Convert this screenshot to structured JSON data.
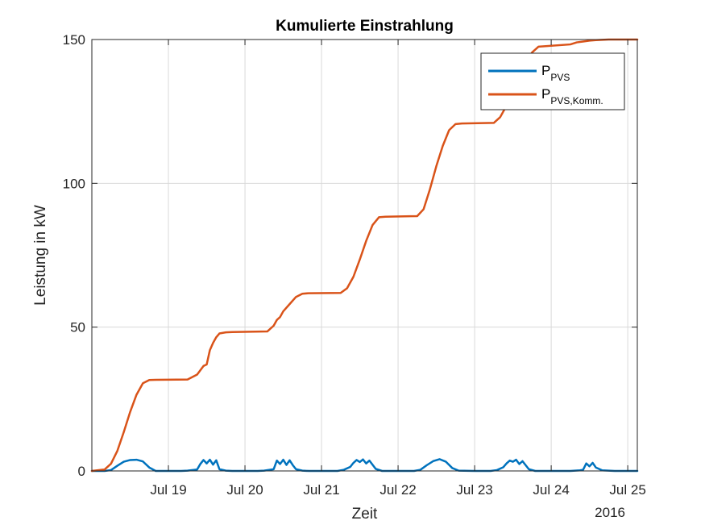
{
  "chart_data": {
    "type": "line",
    "title": "Kumulierte Einstrahlung",
    "xlabel": "Zeit",
    "ylabel": "Leistung in kW",
    "year_label": "2016",
    "xlim": [
      "2016-07-18 00:00",
      "2016-07-25 03:00"
    ],
    "ylim": [
      0,
      150
    ],
    "x_ticks": [
      {
        "at": "2016-07-19",
        "label": "Jul 19"
      },
      {
        "at": "2016-07-20",
        "label": "Jul 20"
      },
      {
        "at": "2016-07-21",
        "label": "Jul 21"
      },
      {
        "at": "2016-07-22",
        "label": "Jul 22"
      },
      {
        "at": "2016-07-23",
        "label": "Jul 23"
      },
      {
        "at": "2016-07-24",
        "label": "Jul 24"
      },
      {
        "at": "2016-07-25",
        "label": "Jul 25"
      }
    ],
    "y_ticks": [
      0,
      50,
      100,
      150
    ],
    "grid": true,
    "legend_position": "top-right",
    "series": [
      {
        "name": "P",
        "name_sub": "PVS",
        "color": "#0072BD",
        "x": [
          "2016-07-18 00:00",
          "2016-07-18 04:00",
          "2016-07-18 06:00",
          "2016-07-18 08:00",
          "2016-07-18 10:00",
          "2016-07-18 12:00",
          "2016-07-18 14:00",
          "2016-07-18 16:00",
          "2016-07-18 18:00",
          "2016-07-18 20:00",
          "2016-07-19 00:00",
          "2016-07-19 04:00",
          "2016-07-19 06:00",
          "2016-07-19 09:00",
          "2016-07-19 10:00",
          "2016-07-19 11:00",
          "2016-07-19 12:00",
          "2016-07-19 13:00",
          "2016-07-19 14:00",
          "2016-07-19 15:00",
          "2016-07-19 16:00",
          "2016-07-19 18:00",
          "2016-07-19 20:00",
          "2016-07-20 00:00",
          "2016-07-20 04:00",
          "2016-07-20 06:00",
          "2016-07-20 09:00",
          "2016-07-20 10:00",
          "2016-07-20 11:00",
          "2016-07-20 12:00",
          "2016-07-20 13:00",
          "2016-07-20 14:00",
          "2016-07-20 15:00",
          "2016-07-20 16:00",
          "2016-07-20 18:00",
          "2016-07-20 20:00",
          "2016-07-21 00:00",
          "2016-07-21 05:00",
          "2016-07-21 07:00",
          "2016-07-21 09:00",
          "2016-07-21 10:00",
          "2016-07-21 11:00",
          "2016-07-21 12:00",
          "2016-07-21 13:00",
          "2016-07-21 14:00",
          "2016-07-21 15:00",
          "2016-07-21 17:00",
          "2016-07-21 19:00",
          "2016-07-22 00:00",
          "2016-07-22 05:00",
          "2016-07-22 07:00",
          "2016-07-22 09:00",
          "2016-07-22 11:00",
          "2016-07-22 13:00",
          "2016-07-22 15:00",
          "2016-07-22 17:00",
          "2016-07-22 19:00",
          "2016-07-23 00:00",
          "2016-07-23 05:00",
          "2016-07-23 07:00",
          "2016-07-23 09:00",
          "2016-07-23 10:00",
          "2016-07-23 11:00",
          "2016-07-23 12:00",
          "2016-07-23 13:00",
          "2016-07-23 14:00",
          "2016-07-23 15:00",
          "2016-07-23 17:00",
          "2016-07-23 19:00",
          "2016-07-24 00:00",
          "2016-07-24 06:00",
          "2016-07-24 09:00",
          "2016-07-24 10:00",
          "2016-07-24 11:00",
          "2016-07-24 12:00",
          "2016-07-24 13:00",
          "2016-07-24 14:00",
          "2016-07-24 16:00",
          "2016-07-24 20:00",
          "2016-07-25 03:00"
        ],
        "y": [
          0,
          0,
          0.3,
          1.8,
          3.2,
          3.8,
          3.9,
          3.3,
          1.2,
          0,
          0,
          0,
          0.1,
          0.5,
          2.4,
          3.8,
          2.6,
          3.9,
          2.2,
          3.7,
          0.6,
          0.1,
          0,
          0,
          0,
          0.1,
          0.6,
          3.6,
          2.4,
          3.9,
          2.1,
          3.7,
          2.0,
          0.6,
          0.1,
          0,
          0,
          0,
          0.4,
          1.4,
          2.8,
          3.8,
          3.1,
          4.0,
          2.6,
          3.6,
          0.7,
          0,
          0,
          0,
          0.4,
          2.0,
          3.4,
          4.1,
          3.2,
          1.0,
          0.1,
          0,
          0,
          0.3,
          1.3,
          2.6,
          3.6,
          3.2,
          3.9,
          2.4,
          3.4,
          0.6,
          0,
          0,
          0,
          0.2,
          0.4,
          2.6,
          1.6,
          2.8,
          1.2,
          0.2,
          0,
          0
        ]
      },
      {
        "name": "P",
        "name_sub": "PVS,Komm.",
        "color": "#D95319",
        "x": [
          "2016-07-18 00:00",
          "2016-07-18 04:00",
          "2016-07-18 06:00",
          "2016-07-18 08:00",
          "2016-07-18 10:00",
          "2016-07-18 12:00",
          "2016-07-18 14:00",
          "2016-07-18 16:00",
          "2016-07-18 18:00",
          "2016-07-18 20:00",
          "2016-07-19 06:00",
          "2016-07-19 09:00",
          "2016-07-19 11:00",
          "2016-07-19 12:00",
          "2016-07-19 13:00",
          "2016-07-19 14:00",
          "2016-07-19 15:00",
          "2016-07-19 16:00",
          "2016-07-19 18:00",
          "2016-07-19 20:00",
          "2016-07-20 07:00",
          "2016-07-20 09:00",
          "2016-07-20 10:00",
          "2016-07-20 11:00",
          "2016-07-20 12:00",
          "2016-07-20 14:00",
          "2016-07-20 16:00",
          "2016-07-20 18:00",
          "2016-07-20 20:00",
          "2016-07-21 06:00",
          "2016-07-21 08:00",
          "2016-07-21 10:00",
          "2016-07-21 12:00",
          "2016-07-21 14:00",
          "2016-07-21 16:00",
          "2016-07-21 18:00",
          "2016-07-21 20:00",
          "2016-07-22 06:00",
          "2016-07-22 08:00",
          "2016-07-22 10:00",
          "2016-07-22 12:00",
          "2016-07-22 14:00",
          "2016-07-22 16:00",
          "2016-07-22 18:00",
          "2016-07-22 20:00",
          "2016-07-23 06:00",
          "2016-07-23 08:00",
          "2016-07-23 10:00",
          "2016-07-23 12:00",
          "2016-07-23 14:00",
          "2016-07-23 16:00",
          "2016-07-23 18:00",
          "2016-07-23 20:00",
          "2016-07-24 06:00",
          "2016-07-24 08:00",
          "2016-07-24 10:00",
          "2016-07-24 12:00",
          "2016-07-24 14:00",
          "2016-07-24 16:00",
          "2016-07-24 18:00",
          "2016-07-24 20:00",
          "2016-07-25 03:00"
        ],
        "y": [
          0,
          0.5,
          2.5,
          7,
          13.5,
          20.5,
          26.5,
          30.5,
          31.6,
          31.7,
          31.8,
          33.5,
          36.5,
          37,
          42,
          44.5,
          46.5,
          47.8,
          48.2,
          48.3,
          48.5,
          50.5,
          52.5,
          53.5,
          55.5,
          58,
          60.5,
          61.6,
          61.8,
          61.9,
          63.5,
          67.5,
          73.5,
          80,
          85.5,
          88.2,
          88.4,
          88.6,
          91,
          98,
          106,
          113,
          118.5,
          120.6,
          120.8,
          121.0,
          123,
          127,
          132,
          137.5,
          142,
          145.5,
          147.5,
          148.3,
          149.0,
          149.3,
          149.6,
          149.8,
          149.9,
          150,
          150,
          150
        ]
      }
    ]
  }
}
